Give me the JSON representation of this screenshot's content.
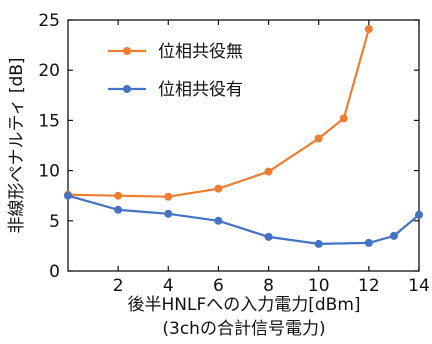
{
  "chart_data": {
    "type": "line",
    "xlabel": "後半HNLFへの入力電力[dBm]",
    "xlabel_line2": "(3chの合計信号電力)",
    "ylabel": "非線形ペナルティ [dB]",
    "xlim": [
      0,
      14
    ],
    "ylim": [
      0,
      25
    ],
    "x_ticks": [
      2,
      4,
      6,
      8,
      10,
      12,
      14
    ],
    "y_ticks": [
      0,
      5,
      10,
      15,
      20,
      25
    ],
    "grid": false,
    "legend_position": "top-left",
    "series": [
      {
        "name": "位相共役無",
        "color": "#ED7D31",
        "x": [
          0,
          2,
          4,
          6,
          8,
          10,
          11,
          12
        ],
        "y": [
          7.6,
          7.5,
          7.4,
          8.2,
          9.9,
          13.2,
          15.2,
          24.1
        ]
      },
      {
        "name": "位相共役有",
        "color": "#4472C4",
        "x": [
          0,
          2,
          4,
          6,
          8,
          10,
          12,
          13,
          14
        ],
        "y": [
          7.5,
          6.1,
          5.7,
          5.0,
          3.4,
          2.7,
          2.8,
          3.5,
          5.6
        ]
      }
    ]
  }
}
